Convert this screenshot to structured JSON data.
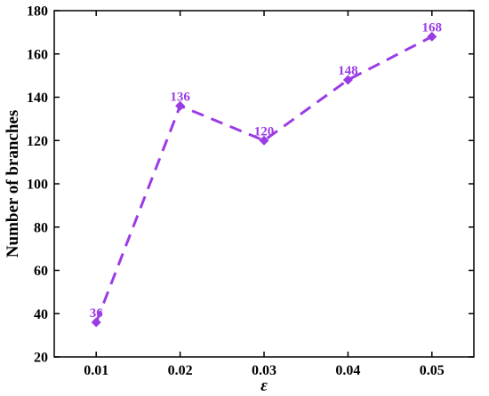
{
  "chart_data": {
    "type": "line",
    "x": [
      0.01,
      0.02,
      0.03,
      0.04,
      0.05
    ],
    "x_tick_labels": [
      "0.01",
      "0.02",
      "0.03",
      "0.04",
      "0.05"
    ],
    "y_ticks": [
      20,
      40,
      60,
      80,
      100,
      120,
      140,
      160,
      180
    ],
    "series": [
      {
        "values": [
          36,
          136,
          120,
          148,
          168
        ],
        "data_labels": [
          "36",
          "136",
          "120",
          "148",
          "168"
        ]
      }
    ],
    "xlabel": "ε",
    "ylabel": "Number of branches",
    "xlim": [
      0.005,
      0.055
    ],
    "ylim": [
      20,
      180
    ],
    "line_style": "dashed",
    "marker": "diamond",
    "color": "#9b3be6",
    "grid": false,
    "legend": "none"
  }
}
